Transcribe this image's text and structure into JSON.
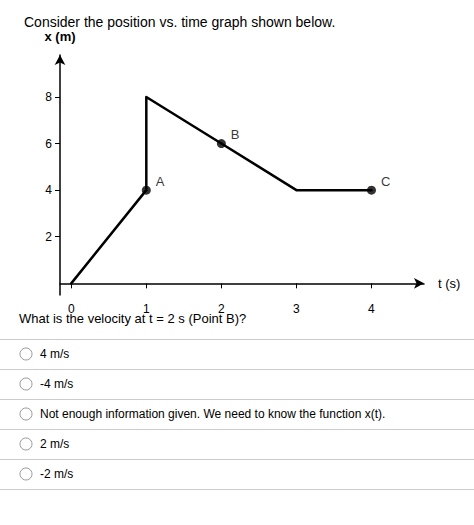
{
  "chart_data": {
    "type": "line",
    "title": "Consider the position vs. time graph shown below.",
    "xlabel": "t (s)",
    "ylabel": "x (m)",
    "x": [
      0,
      1,
      1,
      2,
      3,
      4
    ],
    "values": [
      0,
      4,
      8,
      6,
      4,
      4
    ],
    "color": "#000000",
    "annotations": [
      {
        "x": 1,
        "y": 4,
        "text": "A"
      },
      {
        "x": 2,
        "y": 6,
        "text": "B"
      },
      {
        "x": 4,
        "y": 4,
        "text": "C"
      }
    ],
    "xlim": [
      -0.15,
      4.7
    ],
    "ylim": [
      -0.5,
      9.8
    ],
    "xticks": [
      0,
      1,
      2,
      3,
      4
    ],
    "yticks": [
      2,
      4,
      6,
      8
    ],
    "grid": false,
    "question": "What is the velocity at t = 2 s (Point B)?",
    "choices": [
      "4 m/s",
      "-4 m/s",
      "Not enough information given. We need to know the function x(t).",
      "2 m/s",
      "-2 m/s"
    ]
  }
}
